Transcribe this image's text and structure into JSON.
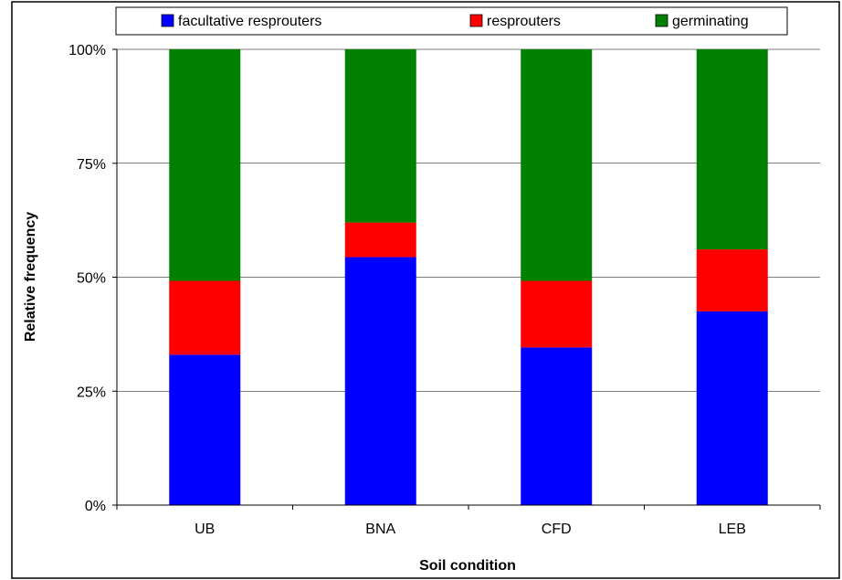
{
  "chart_data": {
    "type": "bar",
    "stacked": true,
    "percent": true,
    "categories": [
      "UB",
      "BNA",
      "CFD",
      "LEB"
    ],
    "series": [
      {
        "name": "facultative resprouters",
        "values": [
          33,
          54.4,
          34.6,
          42.5
        ],
        "color": "#0000FF"
      },
      {
        "name": "resprouters",
        "values": [
          16.2,
          7.6,
          14.6,
          13.6
        ],
        "color": "#FF0000"
      },
      {
        "name": "germinating",
        "values": [
          50.8,
          38,
          50.8,
          43.9
        ],
        "color": "#008000"
      }
    ],
    "xlabel": "Soil condition",
    "ylabel": "Relative frequency",
    "ylim": [
      0,
      100
    ],
    "yticks": [
      0,
      25,
      50,
      75,
      100
    ],
    "ytick_labels": [
      "0%",
      "25%",
      "50%",
      "75%",
      "100%"
    ],
    "grid": true,
    "legend_position": "top"
  }
}
